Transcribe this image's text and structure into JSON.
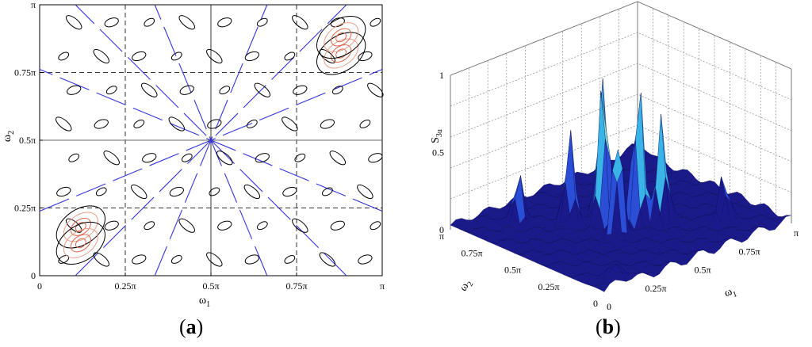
{
  "chart_data": [
    {
      "type": "contour",
      "xlabel_main": "ω",
      "xlabel_sub": "1",
      "ylabel_main": "ω",
      "ylabel_sub": "2",
      "x_ticks": [
        "0",
        "0.25π",
        "0.5π",
        "0.75π",
        "π"
      ],
      "y_ticks": [
        "0",
        "0.25π",
        "0.5π",
        "0.75π",
        "π"
      ],
      "xlim": [
        0,
        1
      ],
      "ylim": [
        0,
        1
      ],
      "dashed_lines_at": [
        0.25,
        0.5,
        0.75
      ],
      "radial_line_center": [
        0.5,
        0.5
      ],
      "radial_line_angles_deg": [
        0,
        22.5,
        45,
        67.5,
        90,
        112.5,
        135,
        157.5
      ],
      "contour_colors": [
        "#000000",
        "#e8a08a",
        "#d9674f"
      ],
      "ray_color": "#3333dd",
      "peaks": [
        {
          "x": 0.12,
          "y": 0.18
        },
        {
          "x": 0.88,
          "y": 0.82
        },
        {
          "x": 0.12,
          "y": 0.12
        },
        {
          "x": 0.88,
          "y": 0.88
        }
      ]
    },
    {
      "type": "surface",
      "zlabel_main": "S",
      "zlabel_sub": "3u",
      "xlabel_main": "ω",
      "xlabel_sub": "1",
      "ylabel_main": "ω",
      "ylabel_sub": "2",
      "x_ticks": [
        "0",
        "0.25π",
        "0.5π",
        "0.75π",
        "π"
      ],
      "y_ticks": [
        "0",
        "0.25π",
        "0.5π",
        "0.75π",
        "π"
      ],
      "z_ticks": [
        "0",
        "0.5",
        "1"
      ],
      "zlim": [
        0,
        1
      ],
      "colormap": [
        "#1a1a8c",
        "#2a4fd6",
        "#3ab4e8",
        "#7fe0c8",
        "#e8c84a",
        "#d97a2a"
      ],
      "peaks": [
        {
          "x": 0.45,
          "y": 0.55,
          "z": 1.0
        },
        {
          "x": 0.55,
          "y": 0.45,
          "z": 0.98
        },
        {
          "x": 0.5,
          "y": 0.62,
          "z": 0.9
        },
        {
          "x": 0.4,
          "y": 0.4,
          "z": 0.72
        },
        {
          "x": 0.62,
          "y": 0.38,
          "z": 0.7
        },
        {
          "x": 0.35,
          "y": 0.65,
          "z": 0.6
        },
        {
          "x": 0.2,
          "y": 0.8,
          "z": 0.35
        },
        {
          "x": 0.8,
          "y": 0.2,
          "z": 0.3
        }
      ]
    }
  ],
  "captions": {
    "a": "a",
    "b": "b"
  }
}
